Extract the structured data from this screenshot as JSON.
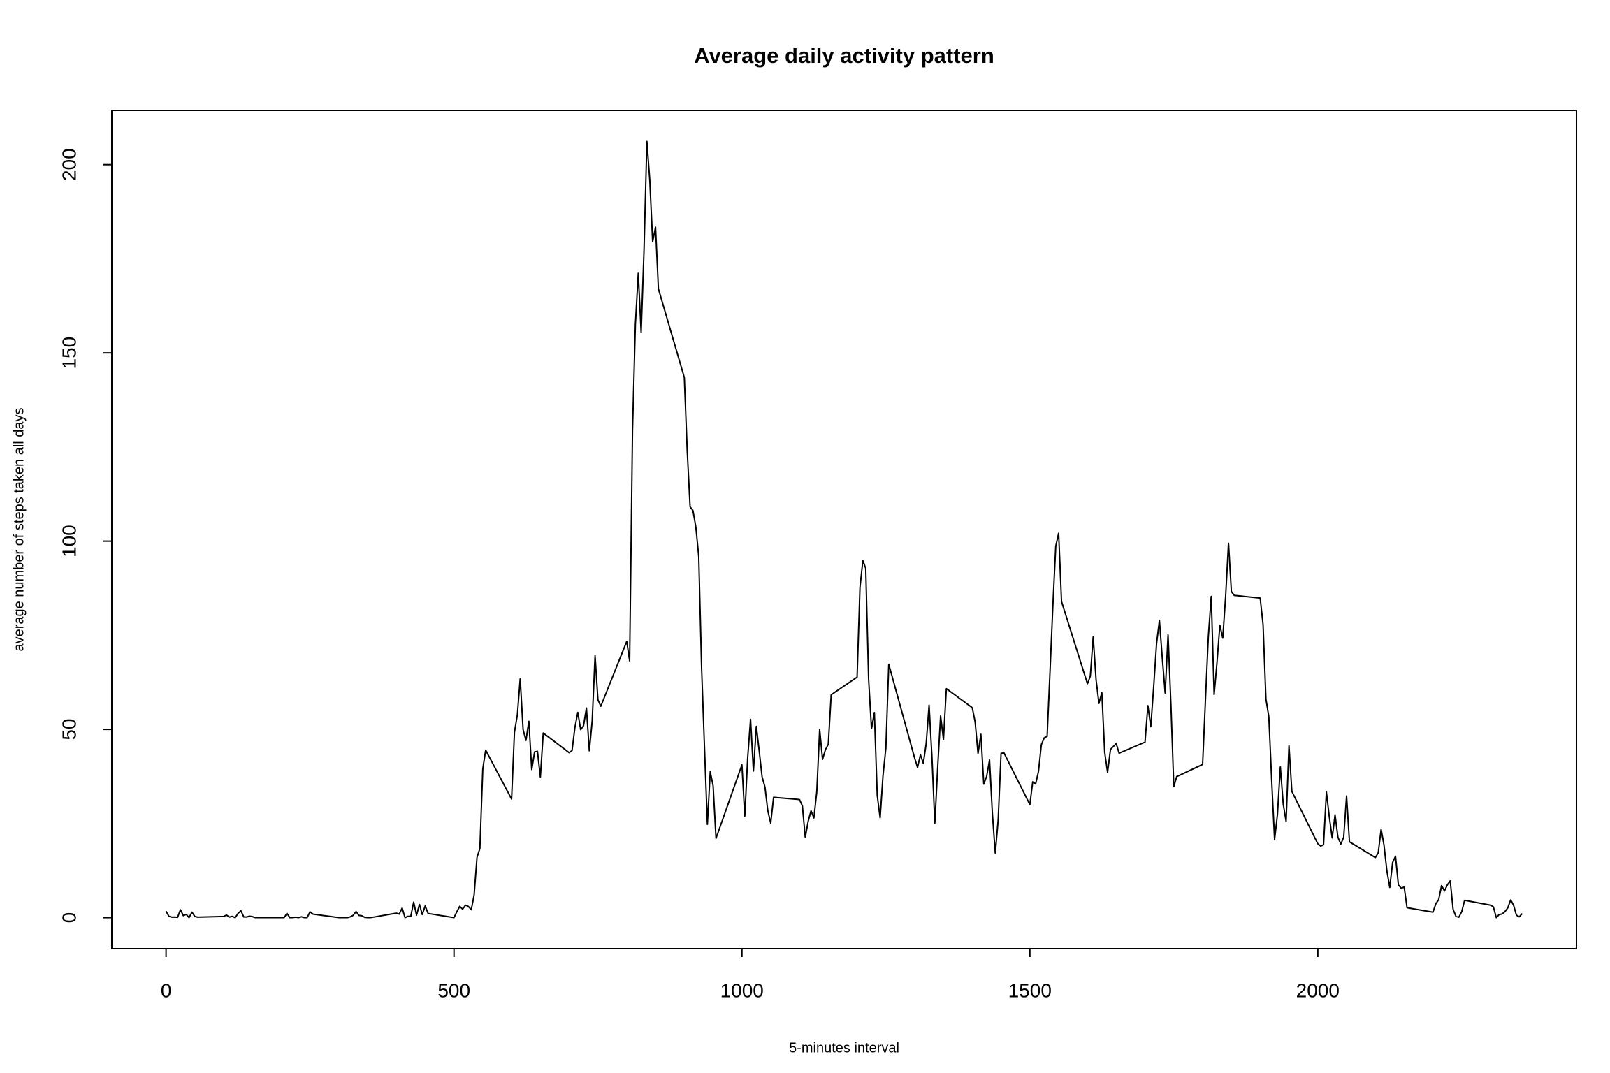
{
  "chart_data": {
    "type": "line",
    "title": "Average daily activity pattern",
    "x_label": "5-minutes interval",
    "y_label": "average number of steps taken all days",
    "color": "#000000",
    "grid": false,
    "xlim": [
      -94.2,
      2449.2
    ],
    "ylim": [
      -8.247,
      214.417
    ],
    "xticks": [
      0,
      500,
      1000,
      1500,
      2000
    ],
    "yticks": [
      0,
      50,
      100,
      150,
      200
    ],
    "x": [
      0,
      5,
      10,
      15,
      20,
      25,
      30,
      35,
      40,
      45,
      50,
      55,
      100,
      105,
      110,
      115,
      120,
      125,
      130,
      135,
      140,
      145,
      150,
      155,
      200,
      205,
      210,
      215,
      220,
      225,
      230,
      235,
      240,
      245,
      250,
      255,
      300,
      305,
      310,
      315,
      320,
      325,
      330,
      335,
      340,
      345,
      350,
      355,
      400,
      405,
      410,
      415,
      420,
      425,
      430,
      435,
      440,
      445,
      450,
      455,
      500,
      505,
      510,
      515,
      520,
      525,
      530,
      535,
      540,
      545,
      550,
      555,
      600,
      605,
      610,
      615,
      620,
      625,
      630,
      635,
      640,
      645,
      650,
      655,
      700,
      705,
      710,
      715,
      720,
      725,
      730,
      735,
      740,
      745,
      750,
      755,
      800,
      805,
      810,
      815,
      820,
      825,
      830,
      835,
      840,
      845,
      850,
      855,
      900,
      905,
      910,
      915,
      920,
      925,
      930,
      935,
      940,
      945,
      950,
      955,
      1000,
      1005,
      1010,
      1015,
      1020,
      1025,
      1030,
      1035,
      1040,
      1045,
      1050,
      1055,
      1100,
      1105,
      1110,
      1115,
      1120,
      1125,
      1130,
      1135,
      1140,
      1145,
      1150,
      1155,
      1200,
      1205,
      1210,
      1215,
      1220,
      1225,
      1230,
      1235,
      1240,
      1245,
      1250,
      1255,
      1300,
      1305,
      1310,
      1315,
      1320,
      1325,
      1330,
      1335,
      1340,
      1345,
      1350,
      1355,
      1400,
      1405,
      1410,
      1415,
      1420,
      1425,
      1430,
      1435,
      1440,
      1445,
      1450,
      1455,
      1500,
      1505,
      1510,
      1515,
      1520,
      1525,
      1530,
      1535,
      1540,
      1545,
      1550,
      1555,
      1600,
      1605,
      1610,
      1615,
      1620,
      1625,
      1630,
      1635,
      1640,
      1645,
      1650,
      1655,
      1700,
      1705,
      1710,
      1715,
      1720,
      1725,
      1730,
      1735,
      1740,
      1745,
      1750,
      1755,
      1800,
      1805,
      1810,
      1815,
      1820,
      1825,
      1830,
      1835,
      1840,
      1845,
      1850,
      1855,
      1900,
      1905,
      1910,
      1915,
      1920,
      1925,
      1930,
      1935,
      1940,
      1945,
      1950,
      1955,
      2000,
      2005,
      2010,
      2015,
      2020,
      2025,
      2030,
      2035,
      2040,
      2045,
      2050,
      2055,
      2100,
      2105,
      2110,
      2115,
      2120,
      2125,
      2130,
      2135,
      2140,
      2145,
      2150,
      2155,
      2200,
      2205,
      2210,
      2215,
      2220,
      2225,
      2230,
      2235,
      2240,
      2245,
      2250,
      2255,
      2300,
      2305,
      2310,
      2315,
      2320,
      2325,
      2330,
      2335,
      2340,
      2345,
      2350,
      2355
    ],
    "values": [
      1.717,
      0.34,
      0.132,
      0.151,
      0.075,
      2.094,
      0.528,
      0.868,
      0,
      1.472,
      0.302,
      0.132,
      0.321,
      0.679,
      0.151,
      0.34,
      0,
      1.113,
      1.83,
      0.17,
      0.17,
      0.377,
      0.264,
      0,
      0,
      0,
      1.132,
      0,
      0,
      0.132,
      0,
      0.226,
      0,
      0,
      1.547,
      0.943,
      0,
      0,
      0,
      0,
      0.208,
      0.623,
      1.623,
      0.585,
      0.491,
      0.075,
      0,
      0,
      1.189,
      0.943,
      2.566,
      0,
      0.34,
      0.358,
      4.113,
      0.66,
      3.491,
      0.83,
      3.113,
      1.113,
      0,
      1.566,
      3.0,
      2.245,
      3.321,
      2.962,
      2.094,
      6.057,
      16.019,
      18.34,
      39.453,
      44.491,
      31.491,
      49.264,
      53.774,
      63.453,
      49.962,
      47.075,
      52.151,
      39.34,
      44.019,
      44.17,
      37.358,
      49.038,
      43.811,
      44.377,
      50.509,
      54.509,
      49.925,
      50.981,
      55.679,
      44.321,
      52.264,
      69.547,
      57.849,
      56.151,
      73.377,
      68.208,
      129.434,
      157.528,
      171.151,
      155.396,
      177.302,
      206.17,
      195.925,
      179.566,
      183.396,
      167.019,
      143.453,
      124.038,
      109.113,
      108.113,
      103.717,
      95.962,
      66.208,
      45.226,
      24.792,
      38.755,
      34.981,
      21.057,
      40.566,
      26.981,
      42.415,
      52.66,
      38.925,
      50.792,
      44.283,
      37.415,
      34.698,
      28.34,
      25.094,
      31.943,
      31.358,
      29.679,
      21.321,
      25.547,
      28.377,
      26.472,
      33.434,
      49.981,
      42.038,
      44.604,
      46.038,
      59.189,
      63.868,
      87.698,
      94.849,
      92.774,
      63.396,
      50.17,
      54.472,
      32.415,
      26.528,
      37.736,
      45.057,
      67.283,
      42.34,
      39.887,
      43.264,
      40.981,
      46.245,
      56.434,
      42.755,
      25.132,
      39.962,
      53.547,
      47.321,
      60.811,
      55.755,
      51.962,
      43.585,
      48.698,
      35.472,
      37.547,
      41.849,
      27.509,
      17.113,
      26.075,
      43.623,
      43.774,
      30.019,
      36.075,
      35.491,
      38.849,
      45.962,
      47.755,
      48.132,
      65.321,
      82.906,
      98.66,
      102.113,
      83.962,
      62.132,
      64.132,
      74.547,
      63.17,
      56.906,
      59.774,
      43.868,
      38.566,
      44.66,
      45.453,
      46.208,
      43.679,
      46.623,
      56.302,
      50.717,
      61.226,
      72.717,
      78.943,
      68.943,
      59.66,
      75.094,
      56.509,
      34.774,
      37.453,
      40.679,
      58.019,
      74.698,
      85.321,
      59.264,
      67.774,
      77.698,
      74.245,
      85.34,
      99.453,
      86.585,
      85.604,
      84.868,
      77.83,
      58.038,
      53.358,
      36.321,
      20.717,
      27.396,
      40.019,
      30.208,
      25.547,
      45.66,
      33.528,
      19.623,
      19.019,
      19.34,
      33.34,
      26.811,
      21.17,
      27.302,
      21.34,
      19.547,
      21.321,
      32.302,
      20.151,
      15.943,
      17.226,
      23.453,
      19.245,
      12.453,
      8.019,
      14.66,
      16.302,
      8.679,
      7.792,
      8.132,
      2.623,
      1.453,
      3.679,
      4.811,
      8.509,
      7.075,
      8.698,
      9.755,
      2.208,
      0.321,
      0.113,
      1.604,
      4.604,
      3.302,
      2.849,
      0,
      0.83,
      0.962,
      1.585,
      2.604,
      4.698,
      3.302,
      0.642,
      0.226,
      1.075
    ]
  }
}
